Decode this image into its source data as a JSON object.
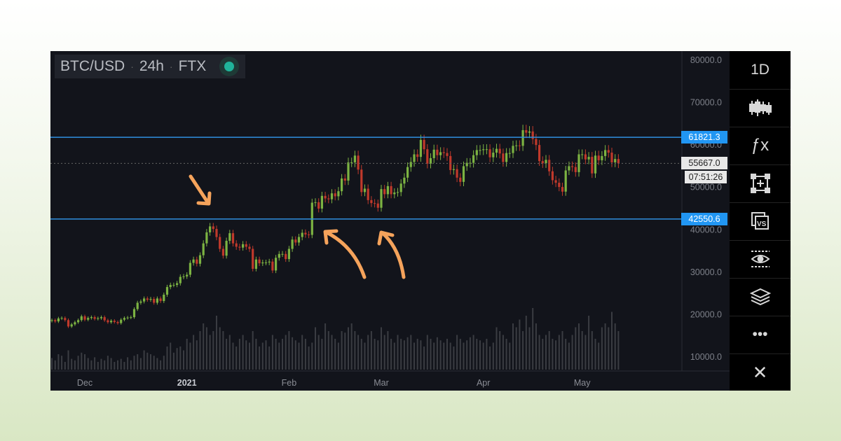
{
  "header": {
    "symbol": "BTC/USD",
    "interval": "24h",
    "exchange": "FTX",
    "status_color": "#20b39a"
  },
  "sidebar": {
    "items": [
      {
        "name": "interval-button",
        "label": "1D"
      },
      {
        "name": "candlestick-icon"
      },
      {
        "name": "indicators-icon",
        "label": "ƒx"
      },
      {
        "name": "add-drawing-icon"
      },
      {
        "name": "compare-icon"
      },
      {
        "name": "eye-icon"
      },
      {
        "name": "layers-icon"
      },
      {
        "name": "more-icon",
        "label": "•••"
      },
      {
        "name": "close-icon",
        "label": "✕"
      }
    ]
  },
  "price_tags": {
    "resistance": "61821.3",
    "current": "55667.0",
    "countdown": "07:51:26",
    "support": "42550.6"
  },
  "chart_data": {
    "type": "candlestick",
    "ylim": [
      10000,
      80000
    ],
    "yticks": [
      80000,
      70000,
      60000,
      50000,
      40000,
      30000,
      20000,
      10000
    ],
    "ytick_labels": [
      "80000.0",
      "70000.0",
      "60000.0",
      "50000.0",
      "40000.0",
      "30000.0",
      "20000.0",
      "10000.0"
    ],
    "xticks": [
      {
        "label": "Dec",
        "date": "2020-12-01",
        "index": 10
      },
      {
        "label": "2021",
        "date": "2021-01-01",
        "index": 41
      },
      {
        "label": "Feb",
        "date": "2021-02-01",
        "index": 72
      },
      {
        "label": "Mar",
        "date": "2021-03-01",
        "index": 100
      },
      {
        "label": "Apr",
        "date": "2021-04-01",
        "index": 131
      },
      {
        "label": "May",
        "date": "2021-05-01",
        "index": 161
      }
    ],
    "start_date": "2020-11-21",
    "closes": [
      18700,
      18400,
      19100,
      19200,
      18700,
      17200,
      17700,
      18200,
      18700,
      19600,
      18800,
      19200,
      19400,
      19000,
      19150,
      19400,
      18650,
      18200,
      18550,
      18250,
      18000,
      18800,
      19200,
      19300,
      19400,
      21300,
      22800,
      23100,
      23800,
      23500,
      23700,
      22800,
      23800,
      23200,
      24700,
      26500,
      27000,
      27000,
      27400,
      28900,
      29000,
      29400,
      32200,
      33000,
      32000,
      34000,
      36800,
      39400,
      40800,
      40200,
      38300,
      35500,
      33900,
      37400,
      39200,
      36800,
      36000,
      35800,
      36600,
      36000,
      35500,
      30800,
      33000,
      32100,
      32300,
      32300,
      32500,
      30400,
      33400,
      34300,
      34300,
      33100,
      35500,
      37700,
      37000,
      38300,
      39300,
      38900,
      38800,
      46400,
      46500,
      45000,
      48000,
      47400,
      47200,
      48600,
      47900,
      49100,
      52100,
      51600,
      55900,
      55900,
      57500,
      54200,
      48900,
      49700,
      47000,
      46300,
      46200,
      45200,
      49600,
      48400,
      50300,
      48400,
      48800,
      48900,
      50900,
      52300,
      54800,
      56000,
      57800,
      57200,
      61200,
      59000,
      55600,
      56900,
      58900,
      57600,
      58300,
      58100,
      57400,
      54100,
      54300,
      52300,
      51300,
      55000,
      55800,
      55800,
      57600,
      58800,
      58800,
      59000,
      59000,
      57100,
      58200,
      59100,
      58000,
      56000,
      58100,
      58100,
      59800,
      59900,
      59800,
      63500,
      62900,
      63200,
      61400,
      60000,
      56200,
      55700,
      56500,
      53800,
      51700,
      51100,
      50100,
      49000,
      54000,
      55000,
      54800,
      53600,
      57800,
      57800,
      56600,
      57200,
      53300,
      57500,
      56400,
      57400,
      58800,
      58200,
      55900,
      56700,
      55667
    ],
    "volume": [
      15,
      12,
      20,
      18,
      10,
      25,
      14,
      12,
      18,
      22,
      20,
      15,
      12,
      16,
      10,
      14,
      12,
      18,
      15,
      10,
      12,
      14,
      10,
      16,
      12,
      18,
      20,
      15,
      25,
      22,
      20,
      18,
      15,
      12,
      18,
      30,
      35,
      22,
      28,
      30,
      25,
      40,
      35,
      45,
      38,
      50,
      60,
      55,
      45,
      50,
      70,
      55,
      50,
      40,
      45,
      35,
      30,
      40,
      45,
      38,
      35,
      50,
      40,
      30,
      35,
      38,
      30,
      45,
      40,
      35,
      40,
      45,
      50,
      42,
      38,
      35,
      45,
      40,
      30,
      35,
      55,
      45,
      40,
      60,
      50,
      45,
      40,
      35,
      50,
      48,
      55,
      60,
      50,
      45,
      40,
      35,
      45,
      50,
      40,
      38,
      55,
      45,
      50,
      40,
      35,
      45,
      40,
      38,
      42,
      45,
      35,
      40,
      38,
      30,
      45,
      40,
      35,
      42,
      38,
      35,
      40,
      35,
      30,
      45,
      40,
      35,
      38,
      42,
      45,
      40,
      38,
      35,
      40,
      30,
      35,
      55,
      50,
      45,
      40,
      35,
      60,
      55,
      65,
      50,
      70,
      55,
      80,
      60,
      45,
      40,
      45,
      50,
      40,
      38,
      45,
      50,
      40,
      35,
      45,
      55,
      60,
      50,
      45,
      70,
      50,
      40,
      35,
      55,
      60,
      55,
      75,
      60,
      50
    ],
    "horizontal_lines": [
      61821.3,
      42550.6
    ],
    "current_price": 55667.0,
    "colors": {
      "up": "#7cb342",
      "down": "#c0392b",
      "level_line": "#2f8fe0",
      "annotation": "#f5a35b"
    },
    "grid": false
  }
}
